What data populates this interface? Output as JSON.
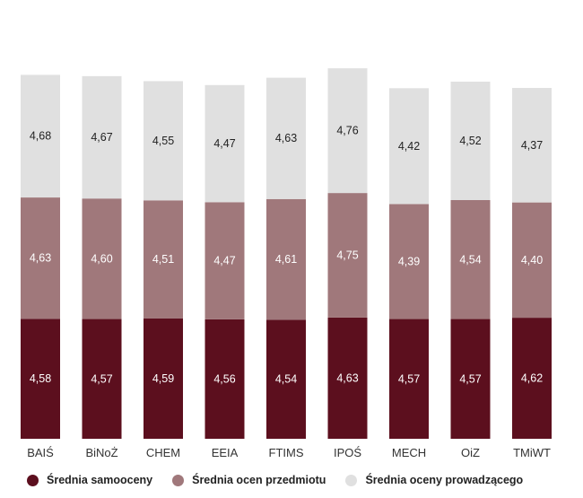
{
  "chart_data": {
    "type": "bar",
    "stacked": true,
    "categories": [
      "BAIŚ",
      "BiNoŻ",
      "CHEM",
      "EEIA",
      "FTIMS",
      "IPOŚ",
      "MECH",
      "OiZ",
      "TMiWT"
    ],
    "series": [
      {
        "name": "Średnia samooceny",
        "color": "#5c0f1e",
        "label_color": "#ffffff",
        "values": [
          4.58,
          4.57,
          4.59,
          4.56,
          4.54,
          4.63,
          4.57,
          4.57,
          4.62
        ],
        "labels": [
          "4,58",
          "4,57",
          "4,59",
          "4,56",
          "4,54",
          "4,63",
          "4,57",
          "4,57",
          "4,62"
        ]
      },
      {
        "name": "Średnia ocen przedmiotu",
        "color": "#a0787b",
        "label_color": "#ffffff",
        "values": [
          4.63,
          4.6,
          4.51,
          4.47,
          4.61,
          4.75,
          4.39,
          4.54,
          4.4
        ],
        "labels": [
          "4,63",
          "4,60",
          "4,51",
          "4,47",
          "4,61",
          "4,75",
          "4,39",
          "4,54",
          "4,40"
        ]
      },
      {
        "name": "Średnia oceny prowadzącego",
        "color": "#e0e0e0",
        "label_color": "#222222",
        "values": [
          4.68,
          4.67,
          4.55,
          4.47,
          4.63,
          4.76,
          4.42,
          4.52,
          4.37
        ],
        "labels": [
          "4,68",
          "4,67",
          "4,55",
          "4,47",
          "4,63",
          "4,76",
          "4,42",
          "4,52",
          "4,37"
        ]
      }
    ],
    "legend_position": "bottom",
    "grid": false
  }
}
